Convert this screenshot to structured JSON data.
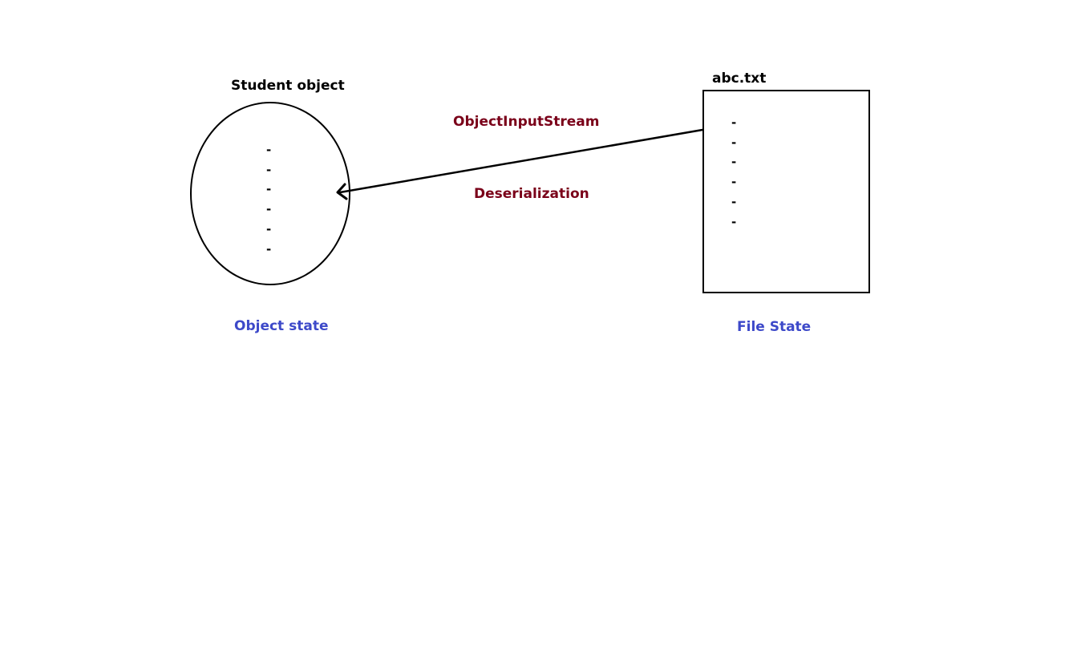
{
  "object_side": {
    "title": "Student object",
    "caption": "Object state",
    "fields": [
      "-",
      "-",
      "-",
      "-",
      "-",
      "-"
    ]
  },
  "file_side": {
    "title": "abc.txt",
    "caption": "File State",
    "fields": [
      "-",
      "-",
      "-",
      "-",
      "-",
      "-"
    ]
  },
  "connector": {
    "stream_label": "ObjectInputStream",
    "process_label": "Deserialization"
  },
  "colors": {
    "process_text": "#7a0019",
    "state_caption": "#3d49c9",
    "outline": "#000000"
  }
}
